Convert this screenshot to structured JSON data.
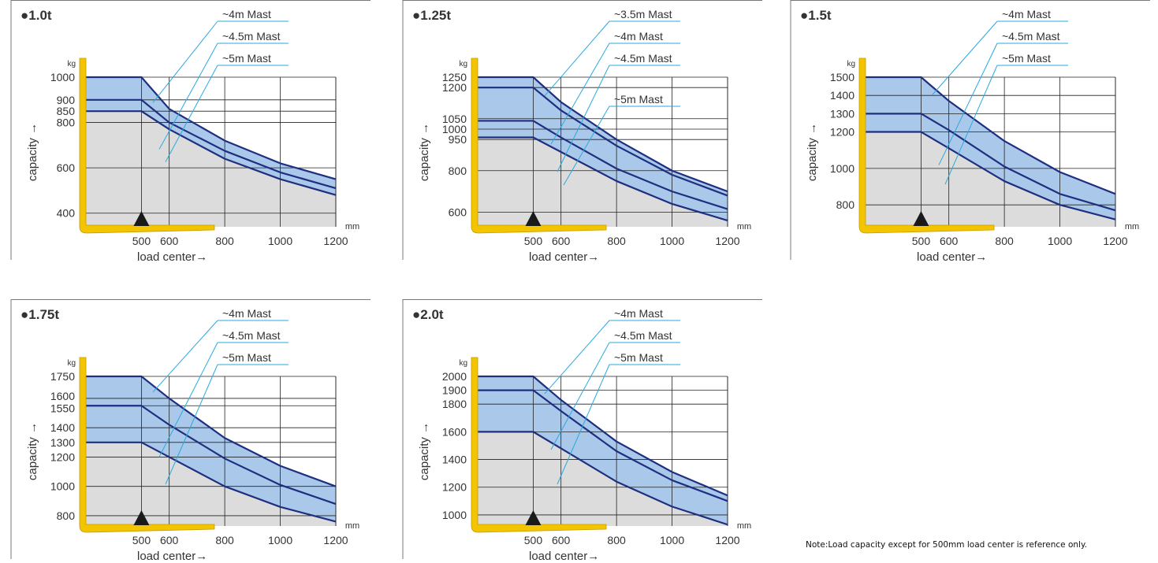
{
  "note": "Note:Load capacity except for 500mm load center is reference only.",
  "chart_data": [
    {
      "type": "line",
      "title": "●1.0t",
      "xlabel": "load center→",
      "ylabel": "capacity →",
      "x_unit": "mm",
      "y_unit": "kg",
      "xticks": [
        500,
        600,
        800,
        1000,
        1200
      ],
      "yticks": [
        400,
        600,
        800,
        850,
        900,
        1000
      ],
      "xlim": [
        300,
        1200
      ],
      "ylim": [
        340,
        1000
      ],
      "series": [
        {
          "name": "~4m Mast",
          "x": [
            300,
            500,
            600,
            800,
            1000,
            1200
          ],
          "values": [
            1000,
            1000,
            860,
            720,
            620,
            550
          ]
        },
        {
          "name": "~4.5m Mast",
          "x": [
            300,
            500,
            600,
            800,
            1000,
            1200
          ],
          "values": [
            900,
            900,
            800,
            675,
            580,
            510
          ]
        },
        {
          "name": "~5m Mast",
          "x": [
            300,
            500,
            600,
            800,
            1000,
            1200
          ],
          "values": [
            850,
            850,
            770,
            640,
            550,
            480
          ]
        }
      ]
    },
    {
      "type": "line",
      "title": "●1.25t",
      "xlabel": "load center→",
      "ylabel": "capacity →",
      "x_unit": "mm",
      "y_unit": "kg",
      "xticks": [
        500,
        600,
        800,
        1000,
        1200
      ],
      "yticks": [
        600,
        800,
        950,
        1000,
        1050,
        1200,
        1250
      ],
      "xlim": [
        300,
        1200
      ],
      "ylim": [
        530,
        1250
      ],
      "series": [
        {
          "name": "~3.5m Mast",
          "x": [
            300,
            500,
            600,
            800,
            1000,
            1200
          ],
          "values": [
            1250,
            1250,
            1130,
            950,
            800,
            700
          ]
        },
        {
          "name": "~4m Mast",
          "x": [
            300,
            500,
            600,
            800,
            1000,
            1200
          ],
          "values": [
            1200,
            1200,
            1090,
            920,
            780,
            680
          ]
        },
        {
          "name": "~4.5m Mast",
          "x": [
            300,
            500,
            600,
            800,
            1000,
            1200
          ],
          "values": [
            1040,
            1040,
            960,
            810,
            700,
            615
          ]
        },
        {
          "name": "~5m Mast",
          "x": [
            300,
            500,
            600,
            800,
            1000,
            1200
          ],
          "values": [
            960,
            960,
            890,
            750,
            640,
            560
          ]
        }
      ]
    },
    {
      "type": "line",
      "title": "●1.5t",
      "xlabel": "load center→",
      "ylabel": "capacity →",
      "x_unit": "mm",
      "y_unit": "kg",
      "xticks": [
        500,
        600,
        800,
        1000,
        1200
      ],
      "yticks": [
        800,
        1000,
        1200,
        1300,
        1400,
        1500
      ],
      "xlim": [
        300,
        1200
      ],
      "ylim": [
        680,
        1500
      ],
      "series": [
        {
          "name": "~4m Mast",
          "x": [
            300,
            500,
            600,
            800,
            1000,
            1200
          ],
          "values": [
            1500,
            1500,
            1370,
            1150,
            980,
            860
          ]
        },
        {
          "name": "~4.5m Mast",
          "x": [
            300,
            500,
            600,
            800,
            1000,
            1200
          ],
          "values": [
            1300,
            1300,
            1210,
            1010,
            860,
            770
          ]
        },
        {
          "name": "~5m Mast",
          "x": [
            300,
            500,
            600,
            800,
            1000,
            1200
          ],
          "values": [
            1200,
            1200,
            1110,
            930,
            800,
            720
          ]
        }
      ]
    },
    {
      "type": "line",
      "title": "●1.75t",
      "xlabel": "load center→",
      "ylabel": "capacity →",
      "x_unit": "mm",
      "y_unit": "kg",
      "xticks": [
        500,
        600,
        800,
        1000,
        1200
      ],
      "yticks": [
        800,
        1000,
        1200,
        1300,
        1400,
        1550,
        1600,
        1750
      ],
      "xlim": [
        300,
        1200
      ],
      "ylim": [
        730,
        1750
      ],
      "series": [
        {
          "name": "~4m Mast",
          "x": [
            300,
            500,
            600,
            800,
            1000,
            1200
          ],
          "values": [
            1750,
            1750,
            1600,
            1330,
            1140,
            1000
          ]
        },
        {
          "name": "~4.5m Mast",
          "x": [
            300,
            500,
            600,
            800,
            1000,
            1200
          ],
          "values": [
            1550,
            1550,
            1420,
            1190,
            1010,
            880
          ]
        },
        {
          "name": "~5m Mast",
          "x": [
            300,
            500,
            600,
            800,
            1000,
            1200
          ],
          "values": [
            1300,
            1300,
            1200,
            1000,
            860,
            760
          ]
        }
      ]
    },
    {
      "type": "line",
      "title": "●2.0t",
      "xlabel": "load center→",
      "ylabel": "capacity →",
      "x_unit": "mm",
      "y_unit": "kg",
      "xticks": [
        500,
        600,
        800,
        1000,
        1200
      ],
      "yticks": [
        1000,
        1200,
        1400,
        1600,
        1800,
        1900,
        2000
      ],
      "xlim": [
        300,
        1200
      ],
      "ylim": [
        920,
        2000
      ],
      "series": [
        {
          "name": "~4m Mast",
          "x": [
            300,
            500,
            600,
            800,
            1000,
            1200
          ],
          "values": [
            2000,
            2000,
            1830,
            1530,
            1310,
            1140
          ]
        },
        {
          "name": "~4.5m Mast",
          "x": [
            300,
            500,
            600,
            800,
            1000,
            1200
          ],
          "values": [
            1900,
            1900,
            1750,
            1460,
            1250,
            1100
          ]
        },
        {
          "name": "~5m Mast",
          "x": [
            300,
            500,
            600,
            800,
            1000,
            1200
          ],
          "values": [
            1600,
            1600,
            1480,
            1240,
            1060,
            930
          ]
        }
      ]
    }
  ],
  "colors": {
    "band": "#aac8ea",
    "curve": "#1f2f80",
    "fork": "#f2c500",
    "fork_edge": "#c79a00",
    "below": "#dcdcdc",
    "leader": "#29a9e0",
    "grid": "#222222",
    "frame": "#777777"
  }
}
